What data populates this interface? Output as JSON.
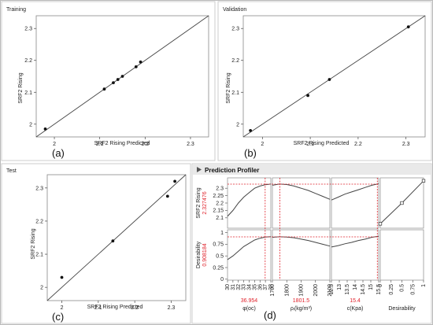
{
  "chart_data": [
    {
      "id": "a",
      "type": "scatter",
      "title": "Training",
      "panel_letter": "(a)",
      "xlabel": "SRF2 Rising Predicted",
      "ylabel": "SRF2 Rising",
      "xlim": [
        1.96,
        2.34
      ],
      "ylim": [
        1.96,
        2.34
      ],
      "xticks": [
        2,
        2.1,
        2.2,
        2.3
      ],
      "yticks": [
        2,
        2.1,
        2.2,
        2.3
      ],
      "x": [
        1.98,
        2.11,
        2.13,
        2.14,
        2.15,
        2.18,
        2.19
      ],
      "y": [
        1.985,
        2.11,
        2.13,
        2.14,
        2.15,
        2.18,
        2.195
      ],
      "reference_line": "y = x"
    },
    {
      "id": "b",
      "type": "scatter",
      "title": "Validation",
      "panel_letter": "(b)",
      "xlabel": "SRF2 Rising Predicted",
      "ylabel": "SRF2 Rising",
      "xlim": [
        1.96,
        2.34
      ],
      "ylim": [
        1.96,
        2.34
      ],
      "xticks": [
        2,
        2.1,
        2.2,
        2.3
      ],
      "yticks": [
        2,
        2.1,
        2.2,
        2.3
      ],
      "x": [
        1.975,
        2.095,
        2.14,
        2.305
      ],
      "y": [
        1.98,
        2.09,
        2.14,
        2.305
      ],
      "reference_line": "y = x"
    },
    {
      "id": "c",
      "type": "scatter",
      "title": "Test",
      "panel_letter": "(c)",
      "xlabel": "SRF2 Rising Predicted",
      "ylabel": "SRF2 Rising",
      "xlim": [
        1.96,
        2.34
      ],
      "ylim": [
        1.96,
        2.34
      ],
      "xticks": [
        2,
        2.1,
        2.2,
        2.3
      ],
      "yticks": [
        2,
        2.1,
        2.2,
        2.3
      ],
      "x": [
        2.0,
        2.14,
        2.29,
        2.31
      ],
      "y": [
        2.03,
        2.14,
        2.275,
        2.32
      ],
      "reference_line": "y = x"
    },
    {
      "id": "d",
      "type": "line",
      "title": "Prediction Profiler",
      "panel_letter": "(d)",
      "rows": [
        {
          "label": "SRF2 Rising",
          "current": "2.327476",
          "ylim": [
            2.03,
            2.37
          ],
          "yticks": [
            2.1,
            2.15,
            2.2,
            2.25,
            2.3
          ]
        },
        {
          "label": "Desirability",
          "current": "0.908184",
          "ylim": [
            -0.02,
            1.06
          ],
          "yticks": [
            0,
            0.25,
            0.5,
            0.75,
            1
          ]
        }
      ],
      "factors": [
        {
          "label": "φ(oc)",
          "value_text": "36.954",
          "value": 36.954,
          "xlim": [
            30,
            38
          ],
          "xticks": [
            "30",
            "31",
            "32",
            "33",
            "34",
            "35",
            "36",
            "37",
            "38"
          ],
          "curves": {
            "response": {
              "x": [
                30,
                31,
                32,
                33,
                34,
                35,
                36,
                37,
                38
              ],
              "y": [
                2.11,
                2.15,
                2.2,
                2.24,
                2.27,
                2.3,
                2.315,
                2.324,
                2.328
              ]
            },
            "desirability": {
              "x": [
                30,
                31,
                32,
                33,
                34,
                35,
                36,
                37,
                38
              ],
              "y": [
                0.42,
                0.5,
                0.6,
                0.7,
                0.77,
                0.84,
                0.88,
                0.905,
                0.912
              ]
            }
          }
        },
        {
          "label": "ρᵢ(kg/m³)",
          "value_text": "1801.5",
          "value": 1801.5,
          "xlim": [
            1750,
            2150
          ],
          "xticks": [
            "1700",
            "1800",
            "1900",
            "2000",
            "2100"
          ],
          "curves": {
            "response": {
              "x": [
                1750,
                1800,
                1850,
                1900,
                1950,
                2000,
                2050,
                2100,
                2150
              ],
              "y": [
                2.32,
                2.328,
                2.325,
                2.315,
                2.3,
                2.285,
                2.265,
                2.245,
                2.225
              ]
            },
            "desirability": {
              "x": [
                1750,
                1800,
                1850,
                1900,
                1950,
                2000,
                2050,
                2100,
                2150
              ],
              "y": [
                0.9,
                0.91,
                0.905,
                0.89,
                0.86,
                0.83,
                0.79,
                0.75,
                0.71
              ]
            }
          }
        },
        {
          "label": "c(Kpa)",
          "value_text": "15.4",
          "value": 15.4,
          "xlim": [
            12,
            15.5
          ],
          "xticks": [
            "12.5",
            "13",
            "13.5",
            "14",
            "14.5",
            "15",
            "15.5"
          ],
          "curves": {
            "response": {
              "x": [
                12,
                12.5,
                13,
                13.5,
                14,
                14.5,
                15,
                15.5
              ],
              "y": [
                2.22,
                2.24,
                2.26,
                2.275,
                2.29,
                2.305,
                2.32,
                2.33
              ]
            },
            "desirability": {
              "x": [
                12,
                12.5,
                13,
                13.5,
                14,
                14.5,
                15,
                15.5
              ],
              "y": [
                0.69,
                0.72,
                0.76,
                0.79,
                0.83,
                0.86,
                0.9,
                0.92
              ]
            }
          }
        },
        {
          "label": "Desirability",
          "value_text": "",
          "value": null,
          "xlim": [
            0,
            1
          ],
          "xticks": [
            "0",
            "0.25",
            "0.5",
            "0.75",
            "1"
          ],
          "curves": {
            "response": {
              "x": [
                0.0,
                0.5,
                1.0
              ],
              "y": [
                2.06,
                2.2,
                2.35
              ],
              "markers": true
            },
            "desirability": null
          }
        }
      ]
    }
  ],
  "colors": {
    "data_point": "#111111",
    "line": "#444444",
    "crosshair": "#e0232c",
    "frame": "#888888",
    "header_bg": "#e9e9e9"
  }
}
